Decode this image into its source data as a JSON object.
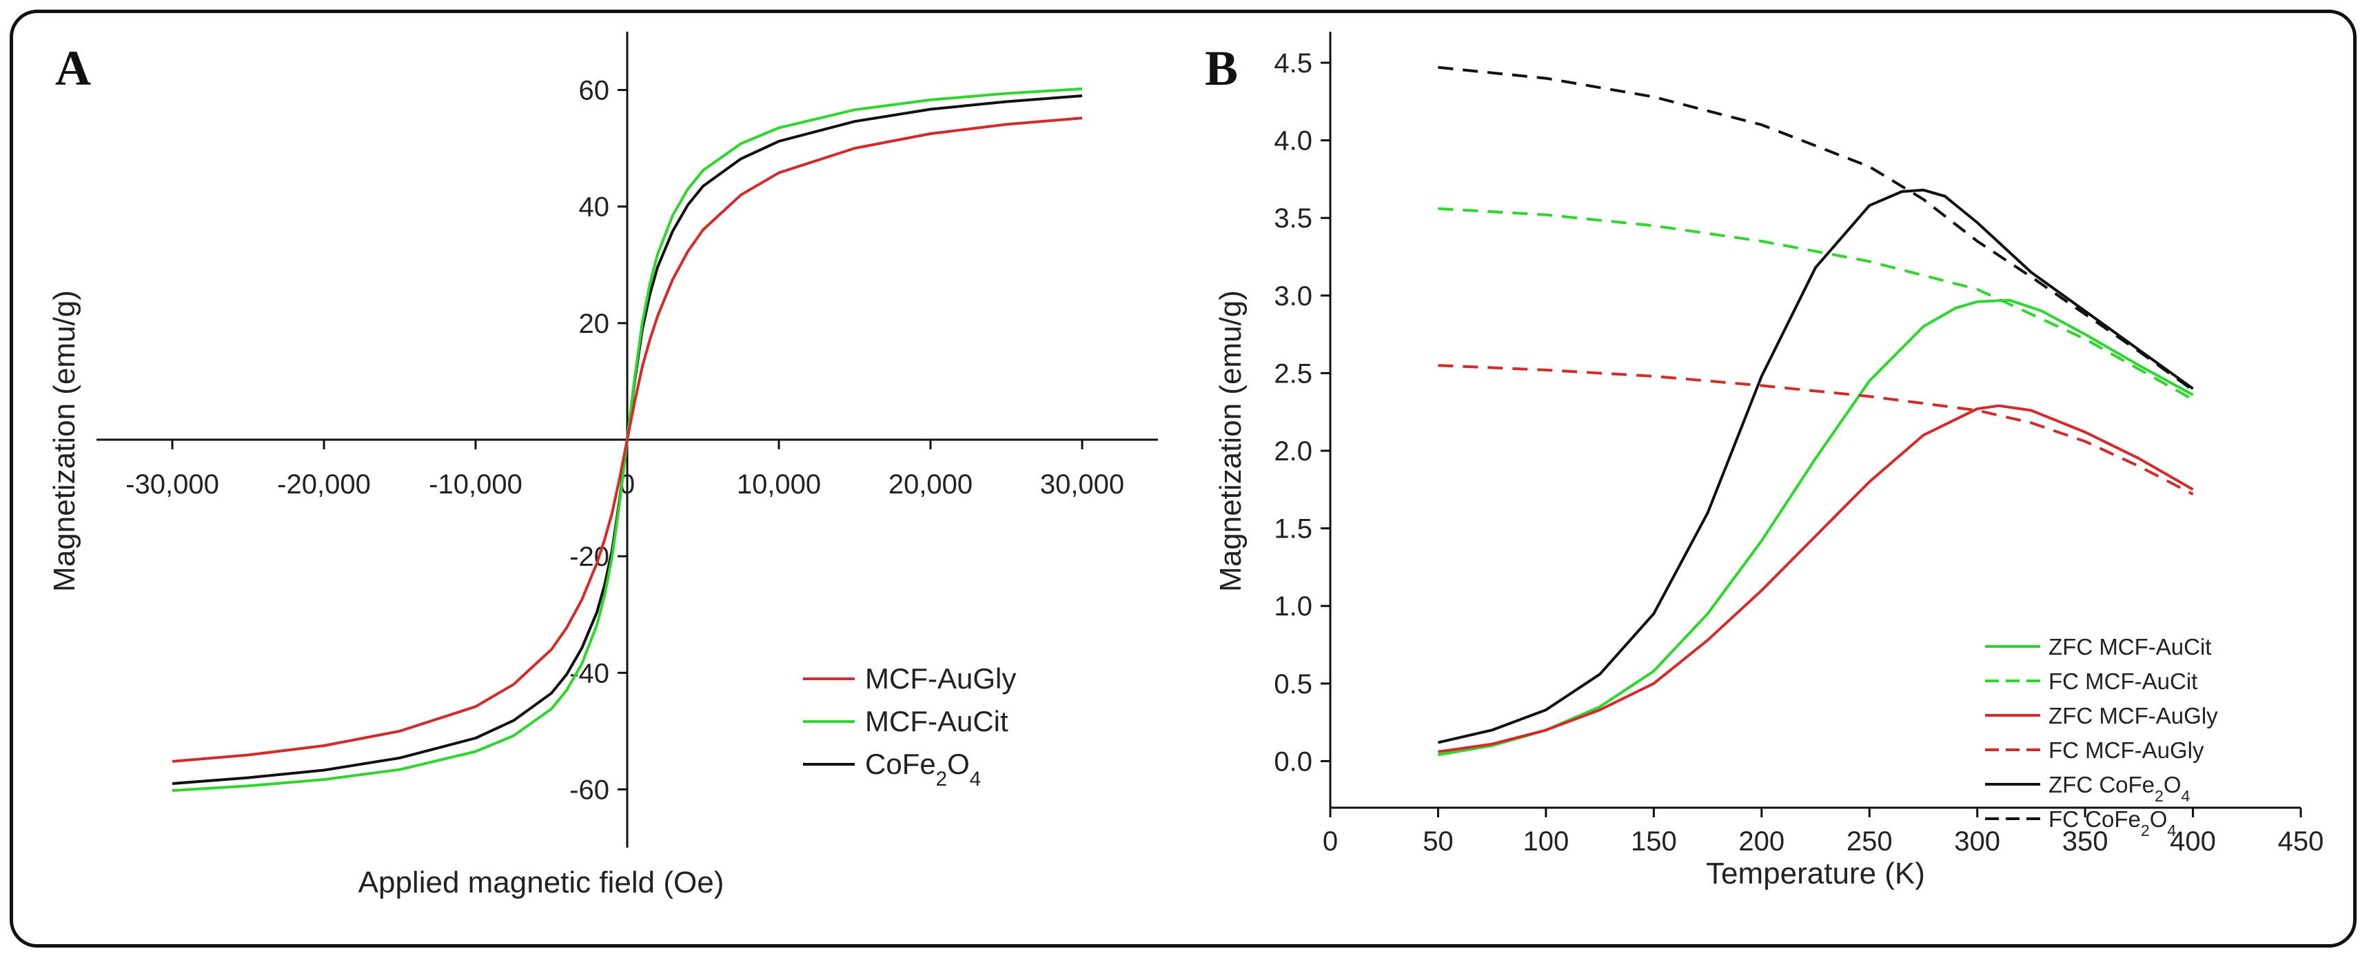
{
  "panels": {
    "a": {
      "letter": "A"
    },
    "b": {
      "letter": "B"
    }
  },
  "chart_data": [
    {
      "type": "line",
      "title": "",
      "xlabel": "Applied magnetic field (Oe)",
      "ylabel": "Magnetization (emu/g)",
      "xlim": [
        -35000,
        35000
      ],
      "ylim": [
        -70,
        70
      ],
      "xticks": [
        -30000,
        -20000,
        -10000,
        0,
        10000,
        20000,
        30000
      ],
      "xtick_labels": [
        "-30,000",
        "-20,000",
        "-10,000",
        "0",
        "10,000",
        "20,000",
        "30,000"
      ],
      "yticks": [
        -60,
        -40,
        -20,
        0,
        20,
        40,
        60
      ],
      "ytick_labels": [
        "-60",
        "-40",
        "-20",
        "0",
        "20",
        "40",
        "60"
      ],
      "legend_position": "lower-right",
      "series": [
        {
          "name": "MCF-AuGly",
          "color": "#d42a2a",
          "style": "solid",
          "x": [
            -30000,
            -25000,
            -20000,
            -15000,
            -10000,
            -7500,
            -5000,
            -4000,
            -3000,
            -2000,
            -1500,
            -1000,
            -500,
            -250,
            0,
            250,
            500,
            1000,
            1500,
            2000,
            3000,
            4000,
            5000,
            7500,
            10000,
            15000,
            20000,
            25000,
            30000
          ],
          "y": [
            -55.2,
            -54.1,
            -52.5,
            -50.0,
            -45.8,
            -42.0,
            -36.0,
            -32.3,
            -27.5,
            -21.2,
            -17.2,
            -12.6,
            -6.6,
            -3.3,
            0,
            3.3,
            6.6,
            12.6,
            17.2,
            21.2,
            27.5,
            32.3,
            36.0,
            42.0,
            45.8,
            50.0,
            52.5,
            54.1,
            55.2
          ]
        },
        {
          "name": "MCF-AuCit",
          "color": "#2ed62e",
          "style": "solid",
          "x": [
            -30000,
            -25000,
            -20000,
            -15000,
            -10000,
            -7500,
            -5000,
            -4000,
            -3000,
            -2000,
            -1500,
            -1000,
            -500,
            -250,
            0,
            250,
            500,
            1000,
            1500,
            2000,
            3000,
            4000,
            5000,
            7500,
            10000,
            15000,
            20000,
            25000,
            30000
          ],
          "y": [
            -60.2,
            -59.4,
            -58.3,
            -56.6,
            -53.5,
            -50.8,
            -46.2,
            -43.0,
            -38.5,
            -31.8,
            -26.8,
            -20.2,
            -10.8,
            -5.5,
            0,
            5.5,
            10.8,
            20.2,
            26.8,
            31.8,
            38.5,
            43.0,
            46.2,
            50.8,
            53.5,
            56.6,
            58.3,
            59.4,
            60.2
          ]
        },
        {
          "name": "CoFe2O4",
          "color": "#111111",
          "style": "solid",
          "x": [
            -30000,
            -25000,
            -20000,
            -15000,
            -10000,
            -7500,
            -5000,
            -4000,
            -3000,
            -2000,
            -1500,
            -1000,
            -500,
            -250,
            0,
            250,
            500,
            1000,
            1500,
            2000,
            3000,
            4000,
            5000,
            7500,
            10000,
            15000,
            20000,
            25000,
            30000
          ],
          "y": [
            -59.0,
            -58.0,
            -56.7,
            -54.6,
            -51.2,
            -48.2,
            -43.5,
            -40.3,
            -35.8,
            -29.6,
            -25.0,
            -19.0,
            -10.2,
            -5.2,
            0,
            5.2,
            10.2,
            19.0,
            25.0,
            29.6,
            35.8,
            40.3,
            43.5,
            48.2,
            51.2,
            54.6,
            56.7,
            58.0,
            59.0
          ]
        }
      ]
    },
    {
      "type": "line",
      "title": "",
      "xlabel": "Temperature (K)",
      "ylabel": "Magnetization (emu/g)",
      "xlim": [
        0,
        450
      ],
      "ylim": [
        -0.3,
        4.7
      ],
      "xticks": [
        0,
        50,
        100,
        150,
        200,
        250,
        300,
        350,
        400,
        450
      ],
      "xtick_labels": [
        "0",
        "50",
        "100",
        "150",
        "200",
        "250",
        "300",
        "350",
        "400",
        "450"
      ],
      "yticks": [
        0.0,
        0.5,
        1.0,
        1.5,
        2.0,
        2.5,
        3.0,
        3.5,
        4.0,
        4.5
      ],
      "ytick_labels": [
        "0.0",
        "0.5",
        "1.0",
        "1.5",
        "2.0",
        "2.5",
        "3.0",
        "3.5",
        "4.0",
        "4.5"
      ],
      "legend_position": "lower-right",
      "series": [
        {
          "name": "ZFC MCF-AuCit",
          "color": "#2ed62e",
          "style": "solid",
          "x": [
            50,
            75,
            100,
            125,
            150,
            175,
            200,
            225,
            250,
            275,
            290,
            300,
            315,
            330,
            350,
            375,
            400
          ],
          "y": [
            0.04,
            0.1,
            0.2,
            0.35,
            0.58,
            0.95,
            1.42,
            1.95,
            2.45,
            2.8,
            2.92,
            2.96,
            2.97,
            2.9,
            2.75,
            2.55,
            2.36
          ]
        },
        {
          "name": "FC MCF-AuCit",
          "color": "#2ed62e",
          "style": "dashed",
          "x": [
            50,
            100,
            150,
            200,
            250,
            300,
            350,
            400
          ],
          "y": [
            3.56,
            3.52,
            3.45,
            3.35,
            3.22,
            3.04,
            2.72,
            2.33
          ]
        },
        {
          "name": "ZFC MCF-AuGly",
          "color": "#d42a2a",
          "style": "solid",
          "x": [
            50,
            75,
            100,
            125,
            150,
            175,
            200,
            225,
            250,
            275,
            300,
            310,
            325,
            350,
            375,
            400
          ],
          "y": [
            0.06,
            0.11,
            0.2,
            0.33,
            0.5,
            0.78,
            1.1,
            1.45,
            1.8,
            2.1,
            2.27,
            2.29,
            2.26,
            2.12,
            1.95,
            1.75
          ]
        },
        {
          "name": "FC MCF-AuGly",
          "color": "#d42a2a",
          "style": "dashed",
          "x": [
            50,
            100,
            150,
            200,
            250,
            300,
            325,
            350,
            375,
            400
          ],
          "y": [
            2.55,
            2.52,
            2.48,
            2.42,
            2.35,
            2.26,
            2.18,
            2.06,
            1.9,
            1.72
          ]
        },
        {
          "name": "ZFC CoFe2O4",
          "color": "#111111",
          "style": "solid",
          "x": [
            50,
            75,
            100,
            125,
            150,
            175,
            200,
            225,
            250,
            265,
            275,
            285,
            300,
            325,
            350,
            375,
            400
          ],
          "y": [
            0.12,
            0.2,
            0.33,
            0.56,
            0.95,
            1.6,
            2.48,
            3.18,
            3.58,
            3.67,
            3.68,
            3.64,
            3.47,
            3.15,
            2.9,
            2.65,
            2.4
          ]
        },
        {
          "name": "FC CoFe2O4",
          "color": "#111111",
          "style": "dashed",
          "x": [
            50,
            100,
            150,
            200,
            250,
            275,
            300,
            325,
            350,
            375,
            400
          ],
          "y": [
            4.47,
            4.4,
            4.28,
            4.1,
            3.83,
            3.62,
            3.35,
            3.12,
            2.88,
            2.64,
            2.39
          ]
        }
      ]
    }
  ]
}
